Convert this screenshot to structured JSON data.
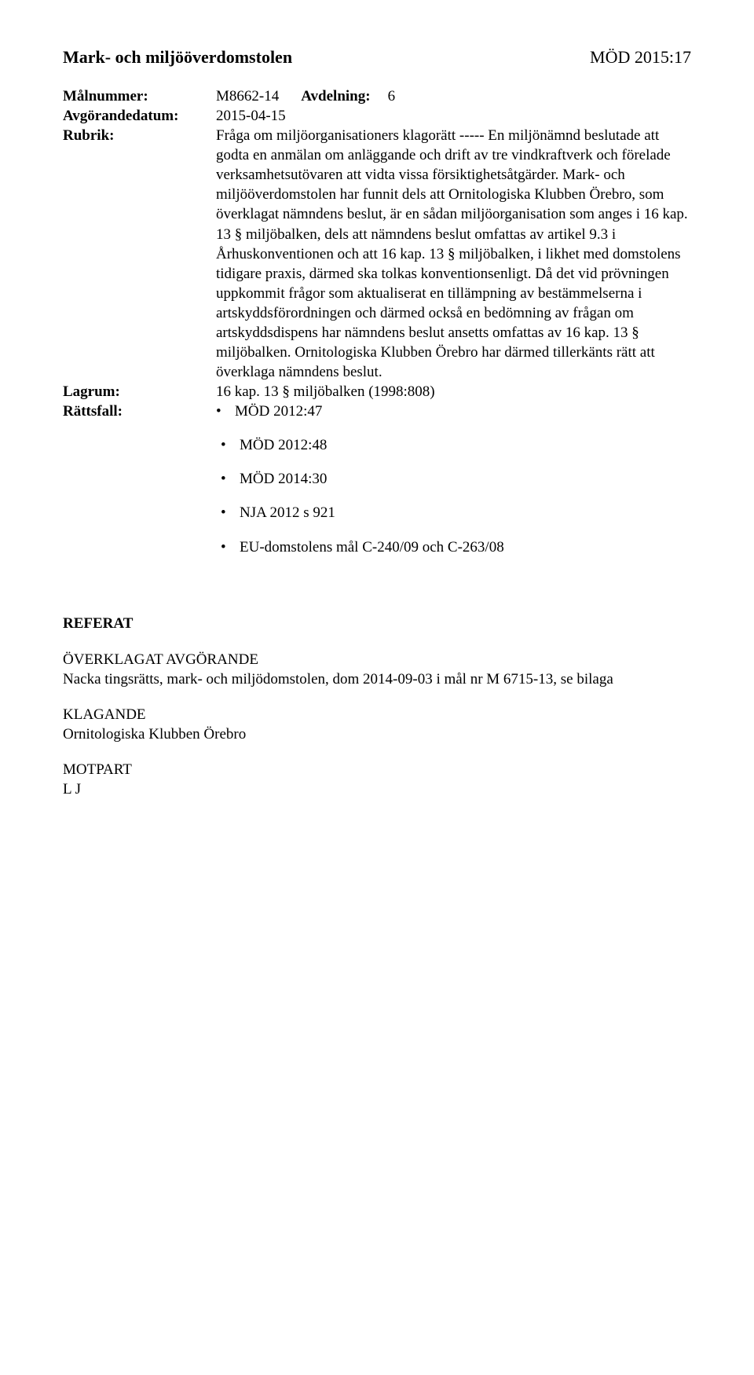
{
  "header": {
    "court_name": "Mark- och miljööverdomstolen",
    "case_ref": "MÖD 2015:17"
  },
  "meta": {
    "malnummer_label": "Målnummer:",
    "malnummer_value": "M8662-14",
    "avdelning_label": "Avdelning:",
    "avdelning_value": "6",
    "avgorandedatum_label": "Avgörandedatum:",
    "avgorandedatum_value": "2015-04-15",
    "rubrik_label": "Rubrik:",
    "rubrik_value": "Fråga om miljöorganisationers klagorätt ----- En miljönämnd beslutade att godta en anmälan om anläggande och drift av tre vindkraftverk och förelade verksamhetsutövaren att vidta vissa försiktighetsåtgärder. Mark- och miljööverdomstolen har funnit dels att Ornitologiska Klubben Örebro, som överklagat nämndens beslut, är en sådan miljöorganisation som anges i 16 kap. 13 § miljöbalken, dels att nämndens beslut omfattas av artikel 9.3 i Århuskonventionen och att 16 kap. 13 § miljöbalken, i likhet med domstolens tidigare praxis, därmed ska tolkas konventionsenligt. Då det vid prövningen uppkommit frågor som aktualiserat en tillämpning av bestämmelserna i artskyddsförordningen och därmed också en bedömning av frågan om artskyddsdispens har nämndens beslut ansetts omfattas av 16 kap. 13 § miljöbalken. Ornitologiska Klubben Örebro har därmed tillerkänts rätt att överklaga nämndens beslut.",
    "lagrum_label": "Lagrum:",
    "lagrum_value": "16 kap. 13 § miljöbalken (1998:808)",
    "rattsfall_label": "Rättsfall:",
    "rattsfall_first": "MÖD 2012:47",
    "rattsfall_rest": [
      "MÖD 2012:48",
      "MÖD 2014:30",
      "NJA 2012 s 921",
      "EU-domstolens mål C-240/09 och C-263/08"
    ]
  },
  "referat": {
    "heading": "REFERAT",
    "overklagat_label": "ÖVERKLAGAT AVGÖRANDE",
    "overklagat_text": "Nacka tingsrätts, mark- och miljödomstolen, dom 2014-09-03 i mål nr M 6715-13, se bilaga",
    "klagande_label": "KLAGANDE",
    "klagande_text": "Ornitologiska Klubben Örebro",
    "motpart_label": "MOTPART",
    "motpart_text": "L J"
  }
}
